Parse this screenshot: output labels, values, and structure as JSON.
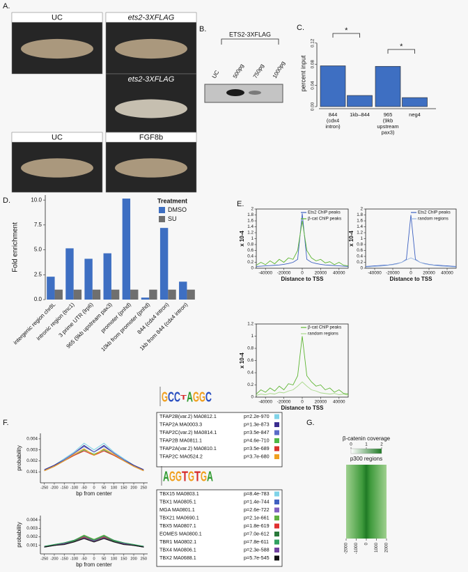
{
  "panel_labels": [
    "A.",
    "B.",
    "C.",
    "D.",
    "E.",
    "F.",
    "G."
  ],
  "a": {
    "images": [
      {
        "label": "UC"
      },
      {
        "label": "ets2-3XFLAG"
      },
      {
        "label": "ets2-3XFLAG"
      },
      {
        "label": "UC"
      },
      {
        "label": "FGF8b"
      }
    ]
  },
  "b": {
    "title": "ETS2-3XFLAG",
    "lanes": [
      "UC",
      "500pg",
      "750pg",
      "1000pg"
    ]
  },
  "c": {
    "type": "bar",
    "ylabel": "percent input",
    "categories": [
      [
        "844",
        "(cdx4",
        "intron)"
      ],
      [
        "1kb–844"
      ],
      [
        "965",
        "(9kb",
        "upstream",
        "pax3)"
      ],
      [
        "neg4"
      ]
    ],
    "values": [
      0.077,
      0.021,
      0.076,
      0.017
    ],
    "color": "#3e6fc2",
    "ylim": [
      0,
      0.125
    ],
    "yticks": [
      {
        "value": 0,
        "label": "0.00"
      },
      {
        "value": 0.04,
        "label": "0.04"
      },
      {
        "value": 0.08,
        "label": "0.08"
      },
      {
        "value": 0.12,
        "label": "0.12"
      }
    ],
    "annotations": [
      "*",
      "*"
    ]
  },
  "d": {
    "type": "bar",
    "ylabel": "Fold enrichment",
    "legend_title": "Treatment",
    "categories": [
      "intergenic region chr8L",
      "intronic region (tnc1)",
      "3 prime UTR (lrp6)",
      "965 (9kb upstream pax3)",
      "promoter (pnhd)",
      "10kb from promoter (pnhd)",
      "844 (cdx4 intron)",
      "1kb from 844 (cdx4 intron)"
    ],
    "series": [
      {
        "name": "DMSO",
        "color": "#3e6fc2",
        "values": [
          2.3,
          5.15,
          4.1,
          4.65,
          10.15,
          0.2,
          7.2,
          1.8
        ]
      },
      {
        "name": "SU",
        "color": "#6f6f6f",
        "values": [
          1,
          1,
          1,
          1,
          1,
          1,
          1,
          1
        ]
      }
    ],
    "ylim": [
      0,
      10.5
    ],
    "yticks": [
      {
        "value": 0,
        "label": "0.0"
      },
      {
        "value": 2.5,
        "label": "2.5"
      },
      {
        "value": 5,
        "label": "5.0"
      },
      {
        "value": 7.5,
        "label": "7.5"
      },
      {
        "value": 10,
        "label": "10.0"
      }
    ]
  },
  "e": [
    {
      "type": "line",
      "ylabel": "x 10-4",
      "xlabel": "Distance to TSS",
      "x": [
        -50000,
        -45000,
        -40000,
        -35000,
        -30000,
        -25000,
        -20000,
        -15000,
        -10000,
        -5000,
        0,
        5000,
        10000,
        15000,
        20000,
        25000,
        30000,
        35000,
        40000,
        45000,
        50000
      ],
      "xlim": [
        -50000,
        50000
      ],
      "xticks": [
        -40000,
        -20000,
        0,
        20000,
        40000
      ],
      "ylim": [
        0,
        2
      ],
      "yticks": [
        0,
        0.2,
        0.4,
        0.6,
        0.8,
        1,
        1.2,
        1.4,
        1.6,
        1.8,
        2
      ],
      "series": [
        {
          "name": "Ets2 ChIP peaks",
          "color": "#3b5fc0",
          "values": [
            0.06,
            0.07,
            0.08,
            0.09,
            0.1,
            0.11,
            0.13,
            0.16,
            0.2,
            0.3,
            1.85,
            0.3,
            0.2,
            0.16,
            0.13,
            0.11,
            0.1,
            0.09,
            0.08,
            0.07,
            0.06
          ]
        },
        {
          "name": "β-cat ChIP peaks",
          "color": "#5cb531",
          "values": [
            0.1,
            0.2,
            0.12,
            0.25,
            0.15,
            0.3,
            0.2,
            0.35,
            0.3,
            0.6,
            1.6,
            0.6,
            0.35,
            0.25,
            0.3,
            0.18,
            0.22,
            0.12,
            0.2,
            0.1,
            0.08
          ]
        }
      ]
    },
    {
      "type": "line",
      "ylabel": "x 10-4",
      "xlabel": "Distance to TSS",
      "x": [
        -50000,
        -45000,
        -40000,
        -35000,
        -30000,
        -25000,
        -20000,
        -15000,
        -10000,
        -5000,
        0,
        5000,
        10000,
        15000,
        20000,
        25000,
        30000,
        35000,
        40000,
        45000,
        50000
      ],
      "xlim": [
        -50000,
        50000
      ],
      "xticks": [
        -40000,
        -20000,
        0,
        20000,
        40000
      ],
      "ylim": [
        0,
        2
      ],
      "yticks": [
        0,
        0.2,
        0.4,
        0.6,
        0.8,
        1,
        1.2,
        1.4,
        1.6,
        1.8,
        2
      ],
      "series": [
        {
          "name": "Ets2 ChIP peaks",
          "color": "#3b5fc0",
          "values": [
            0.06,
            0.07,
            0.08,
            0.09,
            0.1,
            0.11,
            0.13,
            0.16,
            0.2,
            0.3,
            1.8,
            0.3,
            0.2,
            0.16,
            0.13,
            0.11,
            0.1,
            0.09,
            0.08,
            0.07,
            0.06
          ]
        },
        {
          "name": "random regions",
          "color": "#9ab7e0",
          "values": [
            0.04,
            0.05,
            0.06,
            0.07,
            0.08,
            0.1,
            0.12,
            0.15,
            0.2,
            0.28,
            0.35,
            0.28,
            0.2,
            0.15,
            0.12,
            0.1,
            0.08,
            0.07,
            0.06,
            0.05,
            0.04
          ]
        }
      ]
    },
    {
      "type": "line",
      "ylabel": "x 10-4",
      "xlabel": "Distance to TSS",
      "x": [
        -50000,
        -45000,
        -40000,
        -35000,
        -30000,
        -25000,
        -20000,
        -15000,
        -10000,
        -5000,
        0,
        5000,
        10000,
        15000,
        20000,
        25000,
        30000,
        35000,
        40000,
        45000,
        50000
      ],
      "xlim": [
        -50000,
        50000
      ],
      "xticks": [
        -40000,
        -20000,
        0,
        20000,
        40000
      ],
      "ylim": [
        0,
        1.2
      ],
      "yticks": [
        0,
        0.2,
        0.4,
        0.6,
        0.8,
        1,
        1.2
      ],
      "series": [
        {
          "name": "β-cat ChIP peaks",
          "color": "#5cb531",
          "values": [
            0.05,
            0.12,
            0.08,
            0.15,
            0.1,
            0.18,
            0.12,
            0.22,
            0.2,
            0.35,
            1.0,
            0.35,
            0.25,
            0.18,
            0.2,
            0.12,
            0.15,
            0.08,
            0.12,
            0.06,
            0.05
          ]
        },
        {
          "name": "random regions",
          "color": "#a8d88a",
          "values": [
            0.03,
            0.05,
            0.04,
            0.06,
            0.05,
            0.08,
            0.07,
            0.1,
            0.12,
            0.18,
            0.25,
            0.18,
            0.12,
            0.1,
            0.07,
            0.06,
            0.05,
            0.06,
            0.04,
            0.05,
            0.03
          ]
        }
      ]
    }
  ],
  "f": [
    {
      "type": "line",
      "ylabel": "probability",
      "xlabel": "bp from center",
      "logo": [
        "G",
        "C",
        "C",
        "T",
        "A",
        "G",
        "G",
        "C"
      ],
      "x": [
        -250,
        -200,
        -150,
        -100,
        -50,
        0,
        50,
        100,
        150,
        200,
        250
      ],
      "xlim": [
        -270,
        270
      ],
      "xticks": [
        -250,
        -200,
        -150,
        -100,
        -50,
        0,
        50,
        100,
        150,
        200,
        250
      ],
      "ylim": [
        0,
        0.0045
      ],
      "yticks": [
        0.001,
        0.002,
        0.003,
        0.004
      ],
      "series": [
        {
          "name": "TFAP2B(var.2) MA0812.1",
          "p": "p=2.2e-970",
          "color": "#7fd3e8",
          "values": [
            0.0012,
            0.0016,
            0.0022,
            0.0028,
            0.0036,
            0.003,
            0.0036,
            0.0028,
            0.0022,
            0.0016,
            0.0012
          ]
        },
        {
          "name": "TFAP2A MA0003.3",
          "p": "p=1.3e-873",
          "color": "#3a2d8f",
          "values": [
            0.0012,
            0.0016,
            0.0021,
            0.0027,
            0.0034,
            0.0028,
            0.0034,
            0.0027,
            0.0021,
            0.0016,
            0.0012
          ]
        },
        {
          "name": "TFAP2C(var.2) MA0814.1",
          "p": "p=3.5e-847",
          "color": "#5a6cc8",
          "values": [
            0.0011,
            0.0015,
            0.0021,
            0.0027,
            0.0033,
            0.0028,
            0.0033,
            0.0027,
            0.0021,
            0.0015,
            0.0011
          ]
        },
        {
          "name": "TFAP2B MA0811.1",
          "p": "p=4.6e-710",
          "color": "#50b848",
          "values": [
            0.0011,
            0.0015,
            0.002,
            0.0025,
            0.003,
            0.0026,
            0.003,
            0.0025,
            0.002,
            0.0015,
            0.0011
          ]
        },
        {
          "name": "TFAP2A(var.2) MA0810.1",
          "p": "p=3.5e-689",
          "color": "#d9312b",
          "values": [
            0.0011,
            0.0015,
            0.002,
            0.0025,
            0.0029,
            0.0025,
            0.0029,
            0.0025,
            0.002,
            0.0015,
            0.0011
          ]
        },
        {
          "name": "TFAP2C MA0524.2",
          "p": "p=3.7e-680",
          "color": "#f0a020",
          "values": [
            0.0011,
            0.0015,
            0.002,
            0.0026,
            0.0031,
            0.0025,
            0.0031,
            0.0026,
            0.002,
            0.0015,
            0.0011
          ]
        }
      ]
    },
    {
      "type": "line",
      "ylabel": "probability",
      "xlabel": "bp from center",
      "logo": [
        "A",
        "G",
        "G",
        "T",
        "G",
        "T",
        "G",
        "A"
      ],
      "x": [
        -250,
        -200,
        -150,
        -100,
        -50,
        0,
        50,
        100,
        150,
        200,
        250
      ],
      "xlim": [
        -270,
        270
      ],
      "xticks": [
        -250,
        -200,
        -150,
        -100,
        -50,
        0,
        50,
        100,
        150,
        200,
        250
      ],
      "ylim": [
        0,
        0.0045
      ],
      "yticks": [
        0.001,
        0.002,
        0.003,
        0.004
      ],
      "series": [
        {
          "name": "TBX15 MA0803.1",
          "p": "p=8.4e-783",
          "color": "#7fd3e8",
          "values": [
            0.0008,
            0.001,
            0.0012,
            0.0015,
            0.002,
            0.0016,
            0.002,
            0.0015,
            0.0012,
            0.001,
            0.0008
          ]
        },
        {
          "name": "TBX1 MA0805.1",
          "p": "p=1.4e-744",
          "color": "#4060c0",
          "values": [
            0.0008,
            0.001,
            0.0012,
            0.0015,
            0.0021,
            0.0016,
            0.0021,
            0.0015,
            0.0012,
            0.001,
            0.0008
          ]
        },
        {
          "name": "MGA MA0801.1",
          "p": "p=2.6e-722",
          "color": "#8060c0",
          "values": [
            0.0009,
            0.001,
            0.0013,
            0.0016,
            0.0021,
            0.0017,
            0.0021,
            0.0016,
            0.0013,
            0.001,
            0.0009
          ]
        },
        {
          "name": "TBX21 MA0690.1",
          "p": "p=2.1e-661",
          "color": "#60b040",
          "values": [
            0.0008,
            0.0011,
            0.0013,
            0.0016,
            0.0022,
            0.0017,
            0.0022,
            0.0016,
            0.0013,
            0.0011,
            0.0008
          ]
        },
        {
          "name": "TBX5 MA0807.1",
          "p": "p=1.8e-619",
          "color": "#e03030",
          "values": [
            0.0008,
            0.001,
            0.0012,
            0.0015,
            0.002,
            0.0015,
            0.002,
            0.0015,
            0.0012,
            0.001,
            0.0008
          ]
        },
        {
          "name": "EOMES MA0800.1",
          "p": "p=7.0e-612",
          "color": "#2a7a3a",
          "values": [
            0.0008,
            0.001,
            0.0012,
            0.0015,
            0.0019,
            0.0015,
            0.0019,
            0.0015,
            0.0012,
            0.001,
            0.0008
          ]
        },
        {
          "name": "TBR1 MA0802.1",
          "p": "p=7.8e-611",
          "color": "#30a060",
          "values": [
            0.0009,
            0.0011,
            0.0013,
            0.0016,
            0.0021,
            0.0016,
            0.0021,
            0.0016,
            0.0013,
            0.0011,
            0.0009
          ]
        },
        {
          "name": "TBX4 MA0806.1",
          "p": "p=2.3e-588",
          "color": "#7040a0",
          "values": [
            0.0008,
            0.001,
            0.0012,
            0.0014,
            0.0019,
            0.0015,
            0.0019,
            0.0014,
            0.0012,
            0.001,
            0.0008
          ]
        },
        {
          "name": "TBX2 MA0688.1",
          "p": "p=5.7e-545",
          "color": "#111111",
          "values": [
            0.0008,
            0.001,
            0.0011,
            0.0014,
            0.0018,
            0.0014,
            0.0018,
            0.0014,
            0.0011,
            0.001,
            0.0008
          ]
        }
      ]
    }
  ],
  "g": {
    "title": "β-catenin coverage",
    "colorbar_ticks": [
      0,
      1,
      2
    ],
    "colorbar_lim": [
      0,
      2
    ],
    "subtitle": "p300 regions",
    "xlim": [
      -2000,
      2000
    ],
    "xticks": [
      -2000,
      -1000,
      0,
      1000,
      2000
    ]
  }
}
